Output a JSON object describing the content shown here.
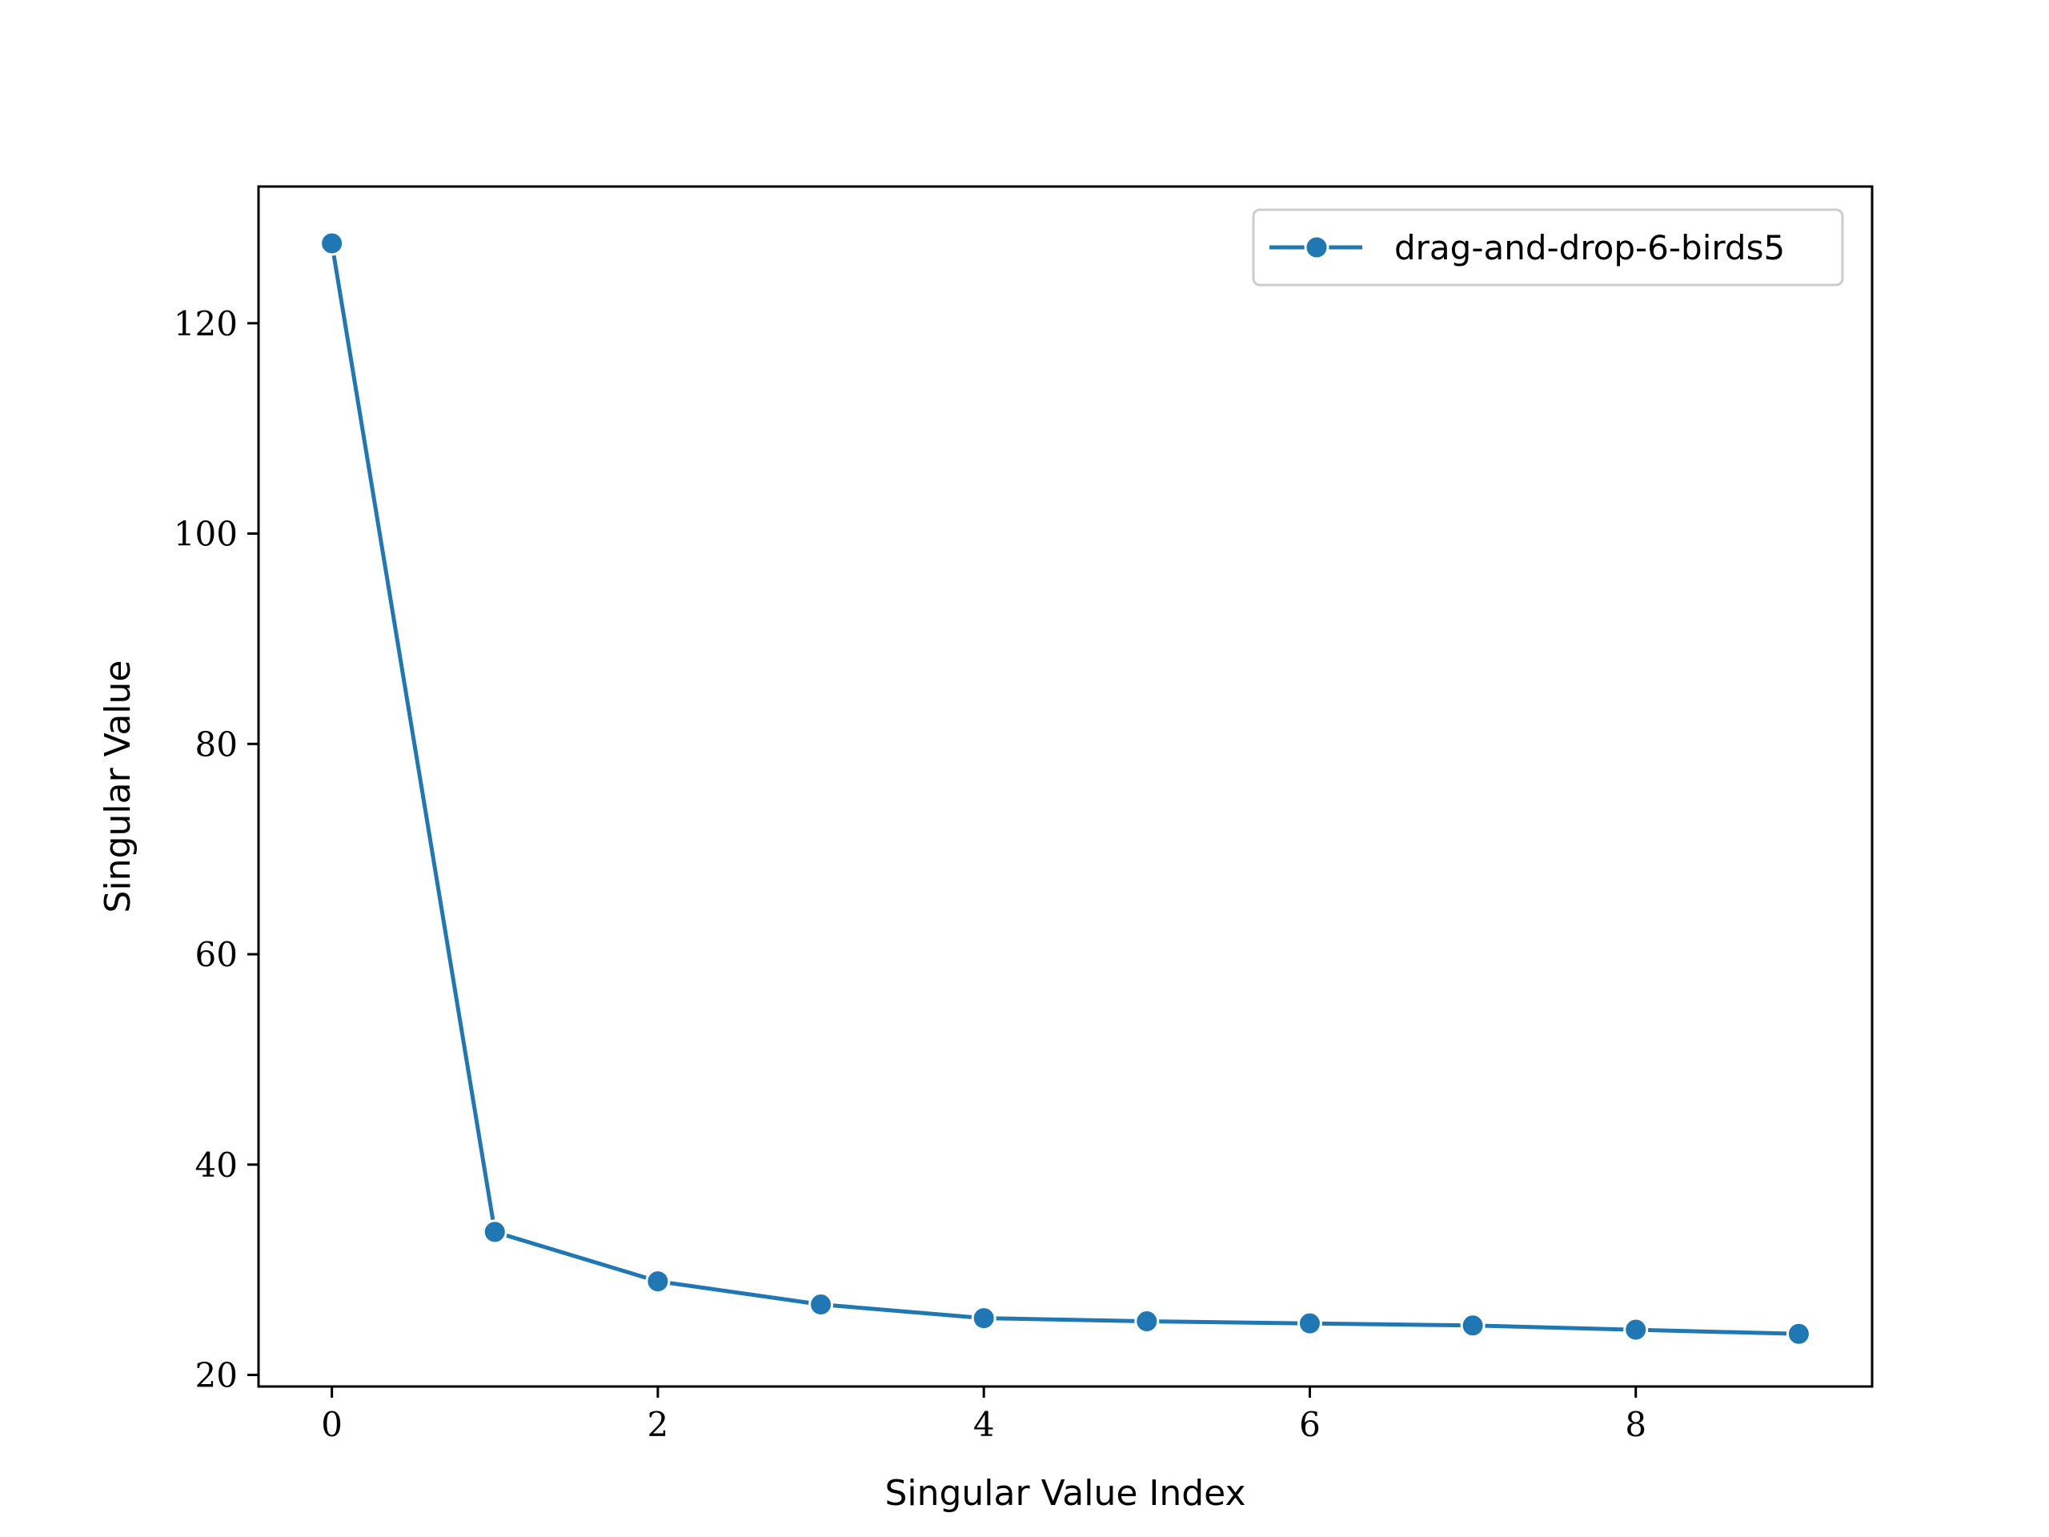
{
  "chart_data": {
    "type": "line",
    "x": [
      0,
      1,
      2,
      3,
      4,
      5,
      6,
      7,
      8,
      9
    ],
    "series": [
      {
        "name": "drag-and-drop-6-birds5",
        "values": [
          127.6,
          33.6,
          28.9,
          26.7,
          25.4,
          25.1,
          24.9,
          24.7,
          24.3,
          23.9
        ],
        "color": "#1f77b4",
        "marker": "circle"
      }
    ],
    "xlabel": "Singular Value Index",
    "ylabel": "Singular Value",
    "xlim": [
      -0.45,
      9.45
    ],
    "ylim": [
      18.9,
      133.0
    ],
    "xticks": [
      0,
      2,
      4,
      6,
      8
    ],
    "yticks": [
      20,
      40,
      60,
      80,
      100,
      120
    ],
    "grid": false,
    "legend_position": "top-right"
  }
}
